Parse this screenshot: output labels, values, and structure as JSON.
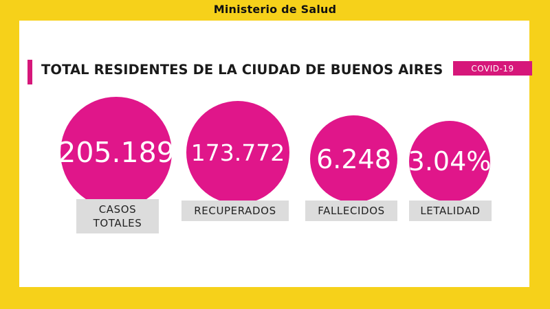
{
  "header": {
    "title": "Ministerio de Salud"
  },
  "main": {
    "title": "TOTAL RESIDENTES DE LA CIUDAD DE BUENOS AIRES",
    "badge": "COVID-19"
  },
  "stats": [
    {
      "value": "205.189",
      "label_line1": "CASOS",
      "label_line2": "TOTALES"
    },
    {
      "value": "173.772",
      "label_line1": "RECUPERADOS"
    },
    {
      "value": "6.248",
      "label_line1": "FALLECIDOS"
    },
    {
      "value": "3.04%",
      "label_line1": "LETALIDAD"
    }
  ],
  "colors": {
    "background": "#f6d11a",
    "accent": "#e0168a",
    "label_bg": "#dcdcdc"
  }
}
